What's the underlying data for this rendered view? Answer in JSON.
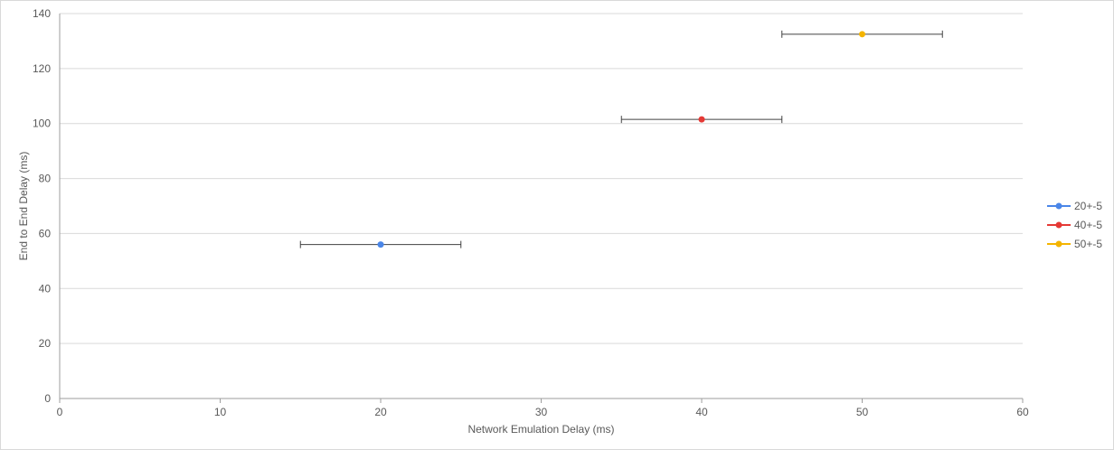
{
  "chart_data": {
    "type": "scatter",
    "title": "",
    "xlabel": "Network Emulation Delay (ms)",
    "ylabel": "End to End Delay (ms)",
    "xlim": [
      0,
      60
    ],
    "ylim": [
      0,
      140
    ],
    "xticks": [
      0,
      10,
      20,
      30,
      40,
      50,
      60
    ],
    "yticks": [
      0,
      20,
      40,
      60,
      80,
      100,
      120,
      140
    ],
    "grid": "horizontal",
    "legend_position": "right",
    "series": [
      {
        "name": "20+-5",
        "color": "#4a86e8",
        "x": 20,
        "y": 56,
        "x_error": 5
      },
      {
        "name": "40+-5",
        "color": "#e53935",
        "x": 40,
        "y": 101.5,
        "x_error": 5
      },
      {
        "name": "50+-5",
        "color": "#f4b400",
        "x": 50,
        "y": 132.5,
        "x_error": 5
      }
    ]
  }
}
